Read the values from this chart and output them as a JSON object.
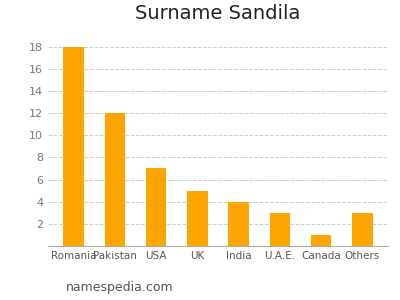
{
  "title": "Surname Sandila",
  "categories": [
    "Romania",
    "Pakistan",
    "USA",
    "UK",
    "India",
    "U.A.E.",
    "Canada",
    "Others"
  ],
  "values": [
    18,
    12,
    7,
    5,
    4,
    3,
    1,
    3
  ],
  "bar_color": "#FFA500",
  "background_color": "#ffffff",
  "ylim": [
    0,
    19.5
  ],
  "yticks": [
    2,
    4,
    6,
    8,
    10,
    12,
    14,
    16,
    18
  ],
  "grid_color": "#cccccc",
  "title_fontsize": 14,
  "xlabel_fontsize": 7.5,
  "ylabel_fontsize": 8,
  "watermark": "namespedia.com",
  "watermark_fontsize": 9
}
